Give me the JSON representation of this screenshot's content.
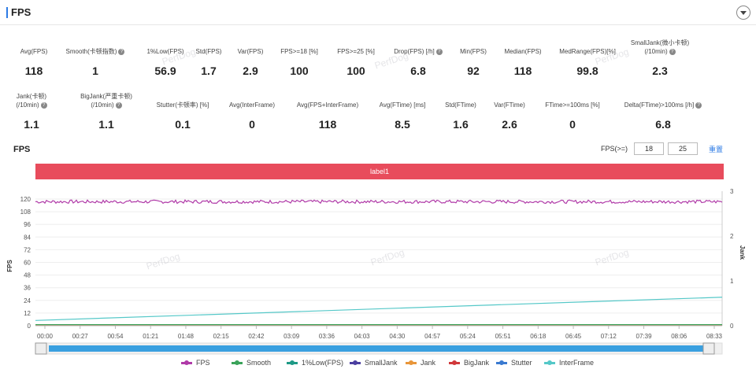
{
  "header": {
    "title": "FPS"
  },
  "stats_row1": [
    {
      "label": "Avg(FPS)",
      "value": "118",
      "help": false
    },
    {
      "label": "Smooth(卡顿指数)",
      "value": "1",
      "help": true
    },
    {
      "label": "1%Low(FPS)",
      "value": "56.9",
      "help": false
    },
    {
      "label": "Std(FPS)",
      "value": "1.7",
      "help": false
    },
    {
      "label": "Var(FPS)",
      "value": "2.9",
      "help": false
    },
    {
      "label": "FPS>=18 [%]",
      "value": "100",
      "help": false
    },
    {
      "label": "FPS>=25 [%]",
      "value": "100",
      "help": false
    },
    {
      "label": "Drop(FPS) [/h]",
      "value": "6.8",
      "help": true
    },
    {
      "label": "Min(FPS)",
      "value": "92",
      "help": false
    },
    {
      "label": "Median(FPS)",
      "value": "118",
      "help": false
    },
    {
      "label": "MedRange(FPS)[%]",
      "value": "99.8",
      "help": false
    },
    {
      "label": "SmallJank(微小卡顿)",
      "label2": "(/10min)",
      "value": "2.3",
      "help": true
    }
  ],
  "stats_row2": [
    {
      "label": "Jank(卡顿)",
      "label2": "(/10min)",
      "value": "1.1",
      "help": true
    },
    {
      "label": "BigJank(严重卡顿)",
      "label2": "(/10min)",
      "value": "1.1",
      "help": true
    },
    {
      "label": "Stutter(卡顿率) [%]",
      "value": "0.1",
      "help": false
    },
    {
      "label": "Avg(InterFrame)",
      "value": "0",
      "help": false
    },
    {
      "label": "Avg(FPS+InterFrame)",
      "value": "118",
      "help": false
    },
    {
      "label": "Avg(FTime) [ms]",
      "value": "8.5",
      "help": false
    },
    {
      "label": "Std(FTime)",
      "value": "1.6",
      "help": false
    },
    {
      "label": "Var(FTime)",
      "value": "2.6",
      "help": false
    },
    {
      "label": "FTime>=100ms [%]",
      "value": "0",
      "help": false
    },
    {
      "label": "Delta(FTime)>100ms [/h]",
      "value": "6.8",
      "help": true
    }
  ],
  "chart_section": {
    "title": "FPS",
    "filter_label": "FPS(>=)",
    "filter_value_1": "18",
    "filter_value_2": "25",
    "reset_label": "重置",
    "label_band": "label1",
    "watermark": "PerfDog"
  },
  "chart_data": {
    "type": "line",
    "ylabel": "FPS",
    "y2label": "Jank",
    "ylim": [
      0,
      120
    ],
    "y_ticks": [
      "0",
      "12",
      "24",
      "36",
      "48",
      "60",
      "72",
      "84",
      "96",
      "108",
      "120"
    ],
    "y2lim": [
      0,
      3
    ],
    "y2_ticks": [
      "0",
      "1",
      "2",
      "3"
    ],
    "x_ticks": [
      "00:00",
      "00:27",
      "00:54",
      "01:21",
      "01:48",
      "02:15",
      "02:42",
      "03:09",
      "03:36",
      "04:03",
      "04:30",
      "04:57",
      "05:24",
      "05:51",
      "06:18",
      "06:45",
      "07:12",
      "07:39",
      "08:06",
      "08:33"
    ],
    "series": [
      {
        "name": "FPS",
        "color": "#b03aa8",
        "approx": "fluctuates 115-120, avg 118"
      },
      {
        "name": "Smooth",
        "color": "#3aa35a"
      },
      {
        "name": "1%Low(FPS)",
        "color": "#1e9a86"
      },
      {
        "name": "SmallJank",
        "color": "#4b3fa0"
      },
      {
        "name": "Jank",
        "color": "#e8963a"
      },
      {
        "name": "BigJank",
        "color": "#d0383a"
      },
      {
        "name": "Stutter",
        "color": "#3a7ad0"
      },
      {
        "name": "InterFrame",
        "color": "#55c8c8",
        "start": 5,
        "end": 27
      }
    ]
  }
}
